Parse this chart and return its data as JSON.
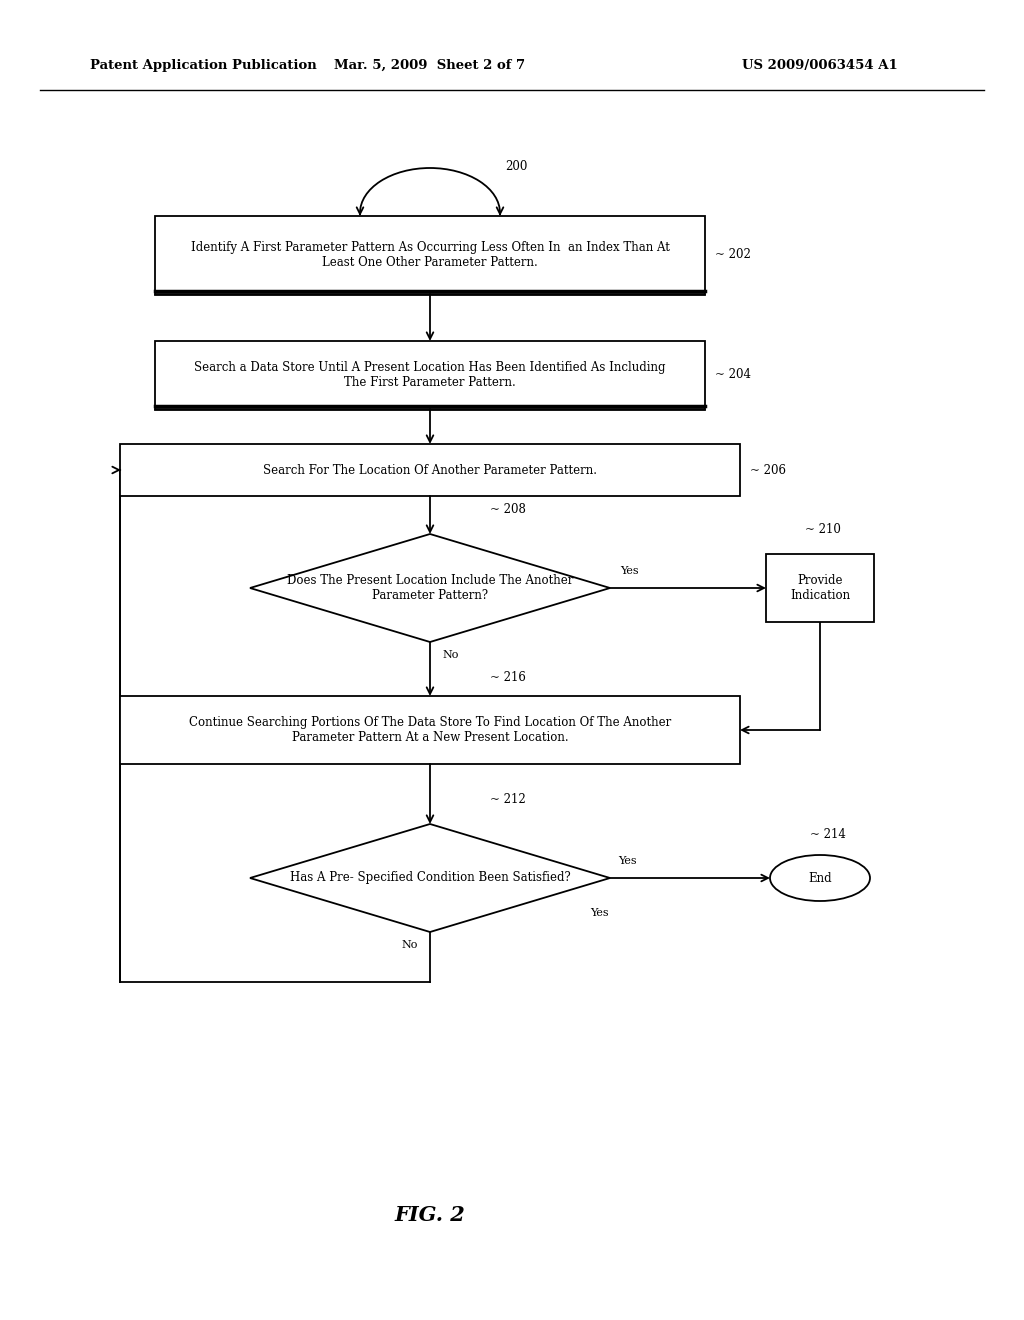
{
  "bg_color": "#ffffff",
  "line_color": "#000000",
  "text_color": "#000000",
  "header_left": "Patent Application Publication",
  "header_mid": "Mar. 5, 2009  Sheet 2 of 7",
  "header_right": "US 2009/0063454 A1",
  "fig_label": "FIG. 2",
  "node_202_text": "Identify A First Parameter Pattern As Occurring Less Often In  an Index Than At\nLeast One Other Parameter Pattern.",
  "node_204_text": "Search a Data Store Until A Present Location Has Been Identified As Including\nThe First Parameter Pattern.",
  "node_206_text": "Search For The Location Of Another Parameter Pattern.",
  "node_208_text": "Does The Present Location Include The Another\nParameter Pattern?",
  "node_210_text": "Provide\nIndication",
  "node_216_text": "Continue Searching Portions Of The Data Store To Find Location Of The Another\nParameter Pattern At a New Present Location.",
  "node_212_text": "Has A Pre- Specified Condition Been Satisfied?",
  "node_214_text": "End",
  "ref_200": "200",
  "ref_202": "202",
  "ref_204": "204",
  "ref_206": "206",
  "ref_208": "208",
  "ref_210": "210",
  "ref_212": "212",
  "ref_214": "214",
  "ref_216": "216",
  "yes_label": "Yes",
  "no_label": "No"
}
